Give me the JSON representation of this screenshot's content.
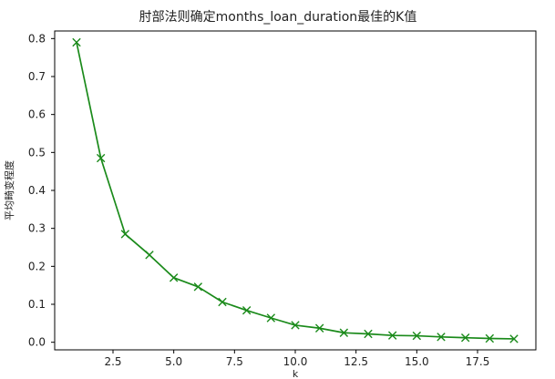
{
  "chart_data": {
    "type": "line",
    "title": "肘部法则确定months_loan_duration最佳的K值",
    "xlabel": "k",
    "ylabel": "平均畸变程度",
    "xlim": [
      0.1,
      19.9
    ],
    "ylim": [
      -0.02,
      0.82
    ],
    "x_ticks": [
      2.5,
      5.0,
      7.5,
      10.0,
      12.5,
      15.0,
      17.5
    ],
    "x_tick_labels": [
      "2.5",
      "5.0",
      "7.5",
      "10.0",
      "12.5",
      "15.0",
      "17.5"
    ],
    "y_ticks": [
      0.0,
      0.1,
      0.2,
      0.3,
      0.4,
      0.5,
      0.6,
      0.7,
      0.8
    ],
    "y_tick_labels": [
      "0.0",
      "0.1",
      "0.2",
      "0.3",
      "0.4",
      "0.5",
      "0.6",
      "0.7",
      "0.8"
    ],
    "grid": false,
    "legend": "none",
    "series": [
      {
        "color": "#1a8a1a",
        "marker": "x",
        "x": [
          1,
          2,
          3,
          4,
          5,
          6,
          7,
          8,
          9,
          10,
          11,
          12,
          13,
          14,
          15,
          16,
          17,
          18,
          19
        ],
        "y": [
          0.79,
          0.485,
          0.285,
          0.23,
          0.17,
          0.146,
          0.106,
          0.084,
          0.064,
          0.045,
          0.037,
          0.025,
          0.022,
          0.018,
          0.017,
          0.014,
          0.012,
          0.01,
          0.009
        ]
      }
    ]
  }
}
